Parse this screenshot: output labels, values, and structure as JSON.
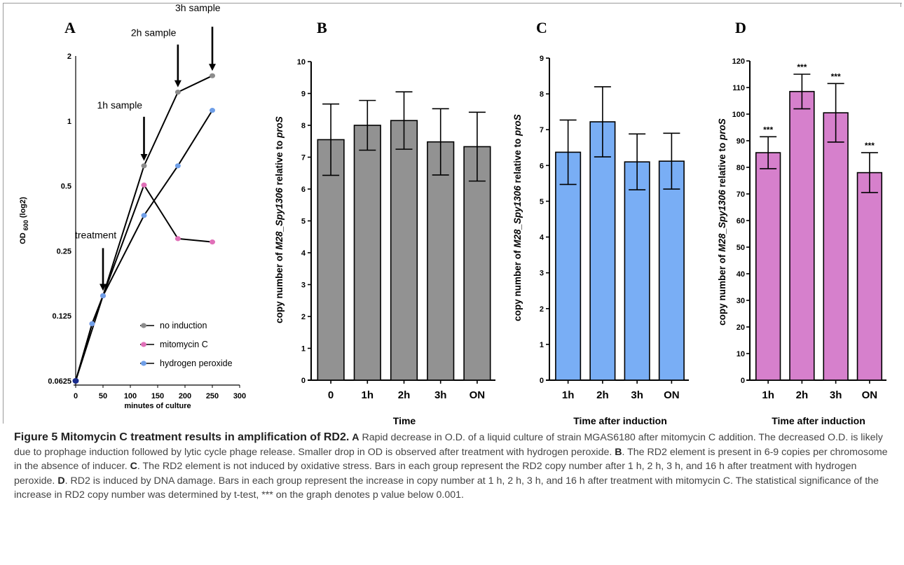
{
  "figure": {
    "caption_label": "Figure 5",
    "caption_title": "Mitomycin C treatment results in amplification of RD2",
    "caption_parts": [
      {
        "key": "A",
        "text": " Rapid decrease in O.D. of a liquid culture of strain MGAS6180 after mitomycin C addition. The decreased O.D. is likely due to prophage induction followed by lytic cycle phage release. Smaller drop in OD is observed after treatment with hydrogen peroxide. "
      },
      {
        "key": "B",
        "text": ". The RD2 element is present in 6-9 copies per chromosome in the absence of inducer. "
      },
      {
        "key": "C",
        "text": ". The RD2 element is not induced by oxidative stress. Bars in each group represent the RD2 copy number after 1 h, 2 h, 3 h, and 16 h after treatment with hydrogen peroxide. "
      },
      {
        "key": "D",
        "text": ". RD2 is induced by DNA damage. Bars in each group represent the increase in copy number at 1 h, 2 h, 3 h, and 16 h after treatment with mitomycin C. The statistical significance of the increase in RD2 copy number was determined by t-test, *** on the graph denotes p value below 0.001."
      }
    ]
  },
  "chart_data": [
    {
      "panel": "A",
      "type": "line",
      "xlabel": "minutes of culture",
      "ylabel_main": "OD",
      "ylabel_sub": "600",
      "ylabel_suffix": "(log2)",
      "yscale": "log2",
      "xlim": [
        0,
        300
      ],
      "ylim": [
        0.0625,
        2
      ],
      "xticks": [
        0,
        50,
        100,
        150,
        200,
        250,
        300
      ],
      "yticks": [
        0.0625,
        0.125,
        0.25,
        0.5,
        1,
        2
      ],
      "ytick_labels": [
        "0.0625",
        "0.125",
        "0.25",
        "0.5",
        "1",
        "2"
      ],
      "series": [
        {
          "name": "no induction",
          "color": "#8c8c8c",
          "x": [
            0,
            50,
            125,
            187,
            250
          ],
          "y": [
            0.0625,
            0.155,
            0.62,
            1.36,
            1.62
          ]
        },
        {
          "name": "mitomycin C",
          "color": "#e070b8",
          "x": [
            0,
            30,
            50,
            125,
            187,
            250
          ],
          "y": [
            0.0625,
            0.115,
            0.155,
            0.505,
            0.285,
            0.275
          ]
        },
        {
          "name": "hydrogen peroxide",
          "color": "#6f9fe8",
          "x": [
            0,
            30,
            50,
            125,
            187,
            250
          ],
          "y": [
            0.0625,
            0.115,
            0.155,
            0.365,
            0.62,
            1.12
          ]
        }
      ],
      "annotations": [
        {
          "text": "treatment",
          "x": 50
        },
        {
          "text": "1h sample",
          "x": 125
        },
        {
          "text": "2h sample",
          "x": 187
        },
        {
          "text": "3h sample",
          "x": 250
        }
      ]
    },
    {
      "panel": "B",
      "type": "bar",
      "ylabel_pre": "copy number of ",
      "ylabel_italic1": "M28_Spy1306",
      "ylabel_mid": " relative to ",
      "ylabel_italic2": "proS",
      "xlabel": "Time",
      "categories": [
        "0",
        "1h",
        "2h",
        "3h",
        "ON"
      ],
      "values": [
        7.55,
        8.0,
        8.15,
        7.48,
        7.33
      ],
      "errors": [
        1.12,
        0.78,
        0.9,
        1.04,
        1.08
      ],
      "ylim": [
        0,
        10
      ],
      "yticks": [
        0,
        1,
        2,
        3,
        4,
        5,
        6,
        7,
        8,
        9,
        10
      ],
      "color": "#929292",
      "stars": []
    },
    {
      "panel": "C",
      "type": "bar",
      "ylabel_pre": "copy number of ",
      "ylabel_italic1": "M28_Spy1306",
      "ylabel_mid": " relative to ",
      "ylabel_italic2": "proS",
      "xlabel": "Time after induction",
      "categories": [
        "1h",
        "2h",
        "3h",
        "ON"
      ],
      "values": [
        6.37,
        7.22,
        6.1,
        6.12
      ],
      "errors": [
        0.9,
        0.98,
        0.78,
        0.78
      ],
      "ylim": [
        0,
        9
      ],
      "yticks": [
        0,
        1,
        2,
        3,
        4,
        5,
        6,
        7,
        8,
        9
      ],
      "color": "#79aef5",
      "stars": []
    },
    {
      "panel": "D",
      "type": "bar",
      "ylabel_pre": "copy number of ",
      "ylabel_italic1": "M28_Spy1306",
      "ylabel_mid": " relative to ",
      "ylabel_italic2": "proS",
      "xlabel": "Time after induction",
      "categories": [
        "1h",
        "2h",
        "3h",
        "ON"
      ],
      "values": [
        85.5,
        108.5,
        100.5,
        78
      ],
      "errors": [
        6,
        6.5,
        11,
        7.5
      ],
      "ylim": [
        0,
        120
      ],
      "yticks": [
        0,
        10,
        20,
        30,
        40,
        50,
        60,
        70,
        80,
        90,
        100,
        110,
        120
      ],
      "color": "#d680cc",
      "stars": [
        "***",
        "***",
        "***",
        "***"
      ]
    }
  ]
}
